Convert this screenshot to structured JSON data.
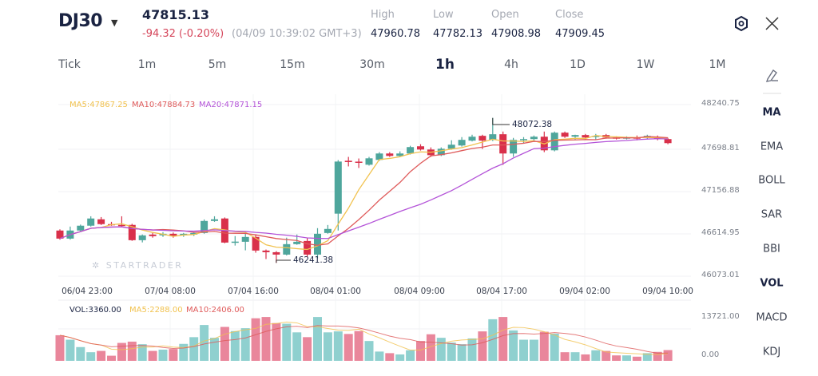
{
  "header": {
    "symbol": "DJ30",
    "last_price": "47815.13",
    "change": "-94.32 (-0.20%)",
    "timestamp": "(04/09 10:39:02 GMT+3)",
    "stats": [
      {
        "label": "High",
        "value": "47960.78"
      },
      {
        "label": "Low",
        "value": "47782.13"
      },
      {
        "label": "Open",
        "value": "47908.98"
      },
      {
        "label": "Close",
        "value": "47909.45"
      }
    ],
    "settings_icon": "hexagon-gear-icon",
    "close_icon": "close-x-icon"
  },
  "timeframes": [
    {
      "label": "Tick"
    },
    {
      "label": "1m"
    },
    {
      "label": "5m"
    },
    {
      "label": "15m"
    },
    {
      "label": "30m"
    },
    {
      "label": "1h",
      "active": true
    },
    {
      "label": "4h"
    },
    {
      "label": "1D"
    },
    {
      "label": "1W"
    },
    {
      "label": "1M"
    }
  ],
  "indicators": [
    {
      "label": "MA",
      "active": true
    },
    {
      "label": "EMA"
    },
    {
      "label": "BOLL"
    },
    {
      "label": "SAR"
    },
    {
      "label": "BBI"
    },
    {
      "label": "VOL",
      "active": true
    },
    {
      "label": "MACD"
    },
    {
      "label": "KDJ"
    }
  ],
  "draw_icon": "pencil-draw-icon",
  "watermark": "STARTRADER",
  "colors": {
    "up": "#4ea69c",
    "down": "#d9304a",
    "vol_up": "#8fd0cf",
    "vol_down": "#e9869b",
    "ma5": "#f1c24f",
    "ma10": "#df5a5a",
    "ma20": "#b454d8"
  },
  "chart_data": [
    {
      "type": "candlestick",
      "legend": {
        "ma5": "MA5:47867.25",
        "ma10": "MA10:47884.73",
        "ma20": "MA20:47871.15"
      },
      "y_ticks": [
        "48240.75",
        "47698.81",
        "47156.88",
        "46614.95",
        "46073.01"
      ],
      "ylim": [
        46073.01,
        48240.75
      ],
      "x_ticks": [
        "06/04 23:00",
        "07/04 08:00",
        "07/04 16:00",
        "08/04 01:00",
        "08/04 09:00",
        "08/04 17:00",
        "09/04 02:00",
        "09/04 10:00"
      ],
      "annotations": {
        "high": "48072.38",
        "low": "46241.38"
      },
      "ohlc": [
        [
          46650,
          46665,
          46535,
          46548
        ],
        [
          46548,
          46700,
          46535,
          46650
        ],
        [
          46650,
          46725,
          46640,
          46711
        ],
        [
          46711,
          46830,
          46700,
          46802
        ],
        [
          46792,
          46820,
          46720,
          46731
        ],
        [
          46731,
          46760,
          46710,
          46721
        ],
        [
          46721,
          46830,
          46700,
          46711
        ],
        [
          46721,
          46735,
          46520,
          46528
        ],
        [
          46528,
          46600,
          46500,
          46589
        ],
        [
          46599,
          46620,
          46560,
          46579
        ],
        [
          46589,
          46630,
          46570,
          46609
        ],
        [
          46609,
          46625,
          46560,
          46579
        ],
        [
          46589,
          46620,
          46570,
          46609
        ],
        [
          46599,
          46630,
          46580,
          46619
        ],
        [
          46619,
          46790,
          46610,
          46771
        ],
        [
          46771,
          46830,
          46760,
          46792
        ],
        [
          46802,
          46815,
          46490,
          46498
        ],
        [
          46508,
          46580,
          46460,
          46510
        ],
        [
          46508,
          46640,
          46400,
          46569
        ],
        [
          46569,
          46600,
          46370,
          46397
        ],
        [
          46397,
          46410,
          46290,
          46376
        ],
        [
          46376,
          46390,
          46241.38,
          46346
        ],
        [
          46346,
          46560,
          46335,
          46478
        ],
        [
          46478,
          46600,
          46470,
          46508
        ],
        [
          46518,
          46560,
          46320,
          46346
        ],
        [
          46346,
          46680,
          46300,
          46609
        ],
        [
          46619,
          46720,
          46610,
          46670
        ],
        [
          46863,
          47540,
          46650,
          47521
        ],
        [
          47531,
          47580,
          47460,
          47515
        ],
        [
          47520,
          47560,
          47440,
          47511
        ],
        [
          47481,
          47580,
          47470,
          47562
        ],
        [
          47542,
          47640,
          47530,
          47623
        ],
        [
          47623,
          47640,
          47580,
          47592
        ],
        [
          47592,
          47650,
          47580,
          47623
        ],
        [
          47623,
          47720,
          47610,
          47704
        ],
        [
          47714,
          47740,
          47660,
          47673
        ],
        [
          47673,
          47700,
          47580,
          47602
        ],
        [
          47602,
          47700,
          47590,
          47683
        ],
        [
          47683,
          47790,
          47670,
          47734
        ],
        [
          47724,
          47830,
          47710,
          47795
        ],
        [
          47785,
          47860,
          47775,
          47835
        ],
        [
          47846,
          47860,
          47680,
          47785
        ],
        [
          47795,
          48072.38,
          47780,
          47866
        ],
        [
          47866,
          47900,
          47480,
          47623
        ],
        [
          47623,
          47820,
          47580,
          47795
        ],
        [
          47795,
          47830,
          47750,
          47805
        ],
        [
          47805,
          47850,
          47780,
          47835
        ],
        [
          47835,
          47900,
          47640,
          47663
        ],
        [
          47663,
          47900,
          47650,
          47886
        ],
        [
          47886,
          47900,
          47820,
          47835
        ],
        [
          47835,
          47860,
          47800,
          47856
        ],
        [
          47856,
          47870,
          47800,
          47825
        ],
        [
          47835,
          47870,
          47800,
          47846
        ],
        [
          47856,
          47870,
          47810,
          47825
        ],
        [
          47825,
          47840,
          47800,
          47815
        ],
        [
          47815,
          47840,
          47800,
          47825
        ],
        [
          47825,
          47850,
          47790,
          47815
        ],
        [
          47825,
          47860,
          47800,
          47846
        ],
        [
          47825,
          47850,
          47790,
          47815
        ],
        [
          47805,
          47820,
          47740,
          47754
        ]
      ]
    },
    {
      "type": "bar",
      "legend": {
        "vol": "VOL:3360.00",
        "ma5": "MA5:2288.00",
        "ma10": "MA10:2406.00"
      },
      "y_ticks": [
        "13721.00",
        "0.00"
      ],
      "ylim": [
        0,
        13721
      ],
      "values": [
        8000,
        6600,
        4300,
        2700,
        3100,
        1600,
        5600,
        6000,
        5200,
        3100,
        3500,
        3700,
        5300,
        7400,
        11200,
        7200,
        10600,
        9300,
        10200,
        13300,
        13700,
        11800,
        11600,
        8900,
        7400,
        13700,
        8900,
        9200,
        8400,
        9300,
        6200,
        2900,
        2400,
        2000,
        3300,
        6200,
        8300,
        7200,
        5700,
        5200,
        7000,
        9200,
        13000,
        13700,
        9500,
        6600,
        6600,
        9100,
        8500,
        2700,
        2700,
        2000,
        3300,
        3100,
        1700,
        1700,
        1300,
        2400,
        2800,
        3360
      ]
    }
  ]
}
